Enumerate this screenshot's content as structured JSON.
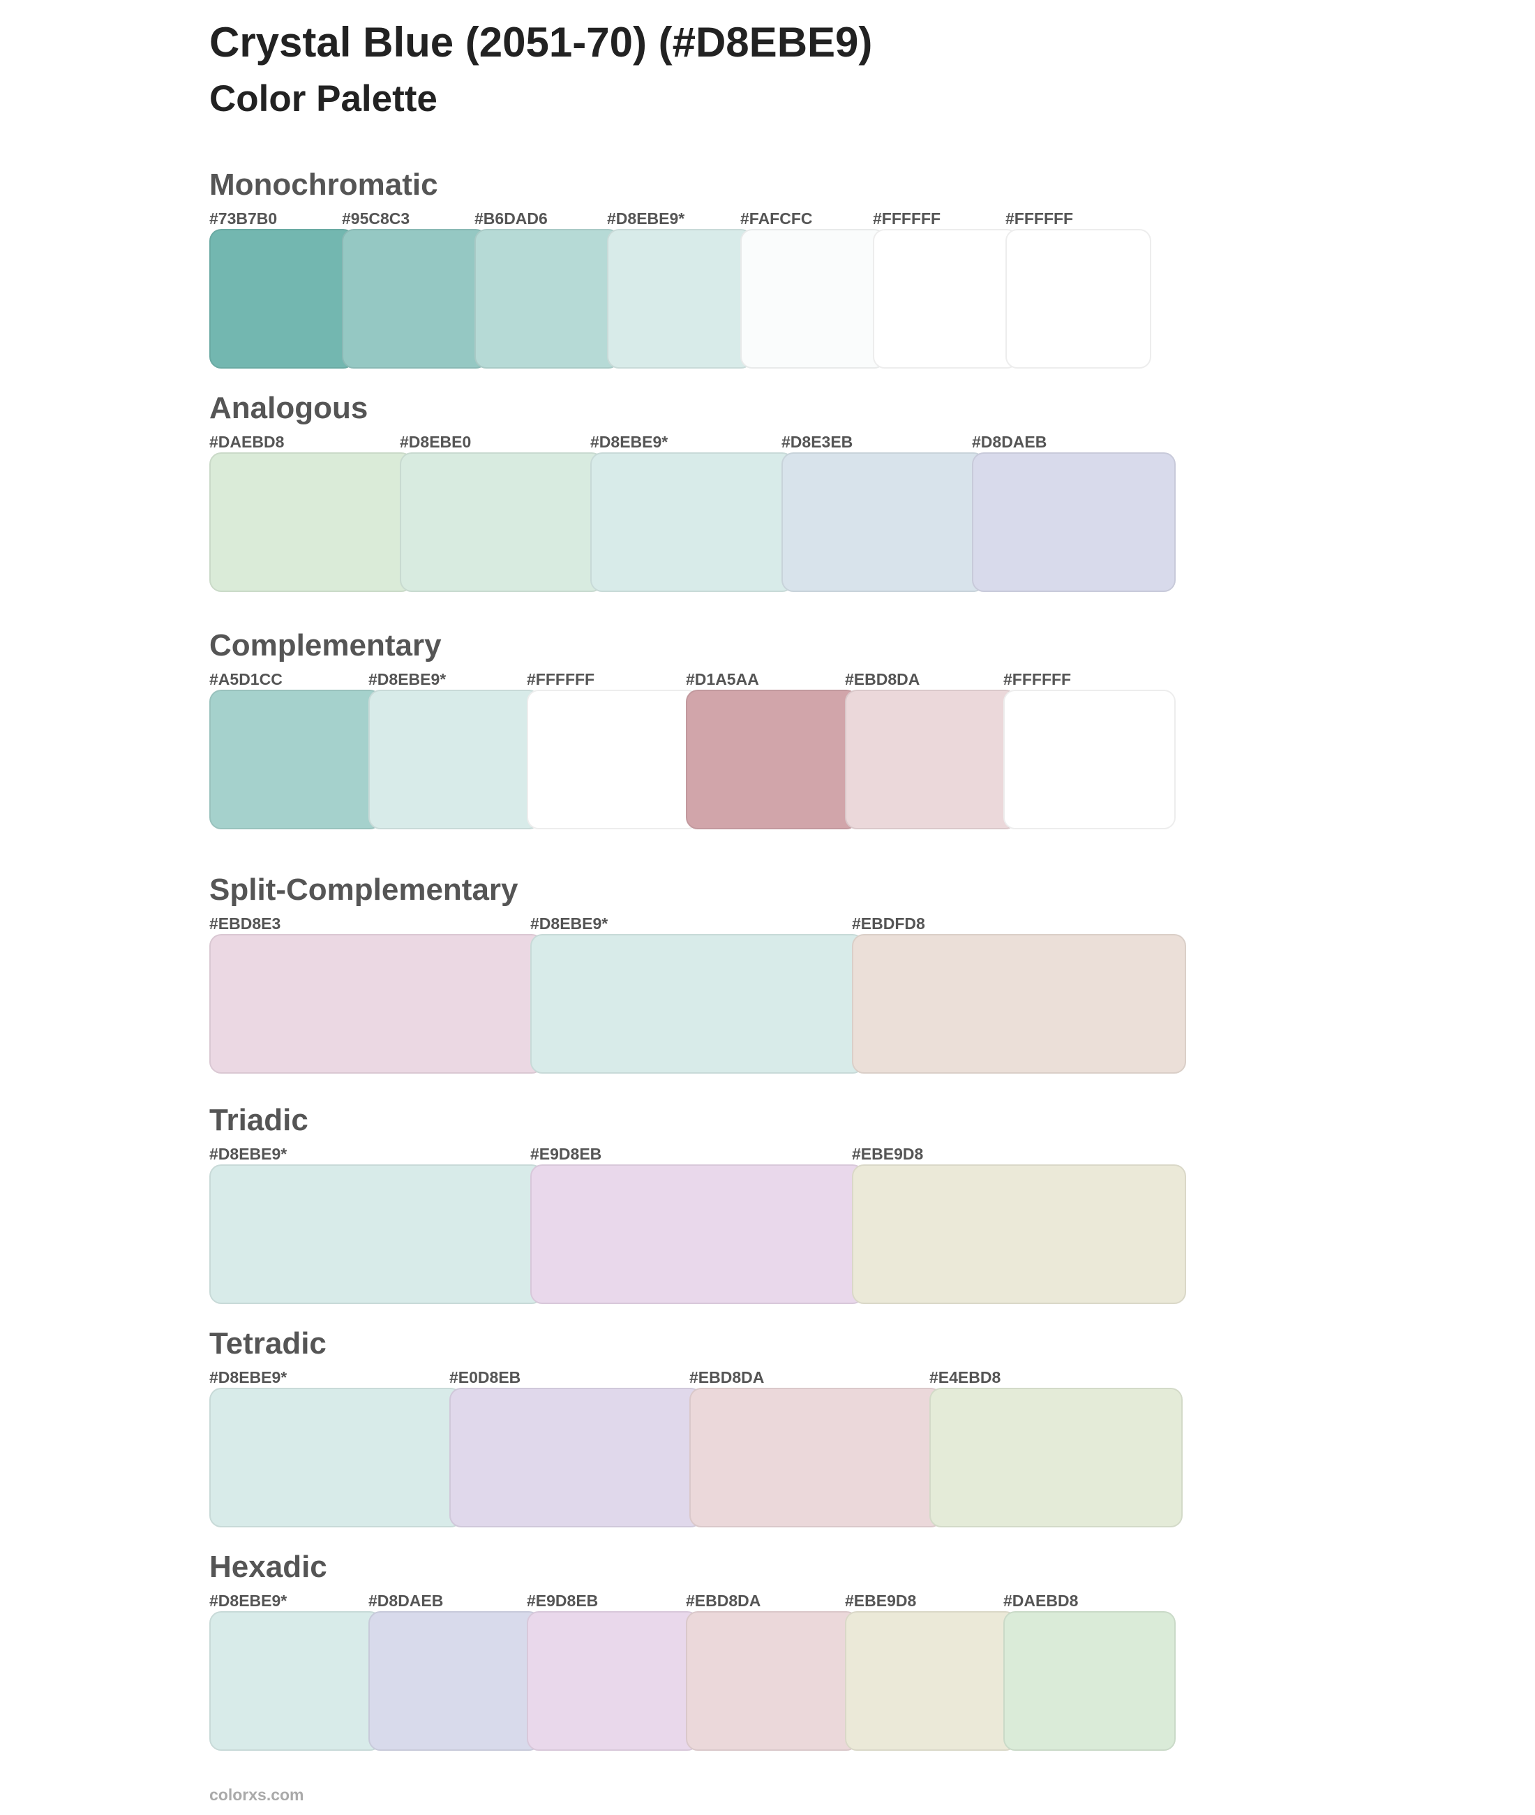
{
  "header": {
    "title": "Crystal Blue (2051-70) (#D8EBE9)",
    "subtitle": "Color Palette"
  },
  "base_color": "#D8EBE9",
  "sections": [
    {
      "id": "monochromatic",
      "heading": "Monochromatic",
      "swatches": [
        {
          "label": "#73B7B0",
          "color": "#73B7B0"
        },
        {
          "label": "#95C8C3",
          "color": "#95C8C3"
        },
        {
          "label": "#B6DAD6",
          "color": "#B6DAD6"
        },
        {
          "label": "#D8EBE9*",
          "color": "#D8EBE9"
        },
        {
          "label": "#FAFCFC",
          "color": "#FAFCFC"
        },
        {
          "label": "#FFFFFF",
          "color": "#FFFFFF"
        },
        {
          "label": "#FFFFFF",
          "color": "#FFFFFF"
        }
      ]
    },
    {
      "id": "analogous",
      "heading": "Analogous",
      "swatches": [
        {
          "label": "#DAEBD8",
          "color": "#DAEBD8"
        },
        {
          "label": "#D8EBE0",
          "color": "#D8EBE0"
        },
        {
          "label": "#D8EBE9*",
          "color": "#D8EBE9"
        },
        {
          "label": "#D8E3EB",
          "color": "#D8E3EB"
        },
        {
          "label": "#D8DAEB",
          "color": "#D8DAEB"
        }
      ]
    },
    {
      "id": "complementary",
      "heading": "Complementary",
      "swatches": [
        {
          "label": "#A5D1CC",
          "color": "#A5D1CC"
        },
        {
          "label": "#D8EBE9*",
          "color": "#D8EBE9"
        },
        {
          "label": "#FFFFFF",
          "color": "#FFFFFF"
        },
        {
          "label": "#D1A5AA",
          "color": "#D1A5AA"
        },
        {
          "label": "#EBD8DA",
          "color": "#EBD8DA"
        },
        {
          "label": "#FFFFFF",
          "color": "#FFFFFF"
        }
      ]
    },
    {
      "id": "split-complementary",
      "heading": "Split-Complementary",
      "swatches": [
        {
          "label": "#EBD8E3",
          "color": "#EBD8E3"
        },
        {
          "label": "#D8EBE9*",
          "color": "#D8EBE9"
        },
        {
          "label": "#EBDFD8",
          "color": "#EBDFD8"
        }
      ]
    },
    {
      "id": "triadic",
      "heading": "Triadic",
      "swatches": [
        {
          "label": "#D8EBE9*",
          "color": "#D8EBE9"
        },
        {
          "label": "#E9D8EB",
          "color": "#E9D8EB"
        },
        {
          "label": "#EBE9D8",
          "color": "#EBE9D8"
        }
      ]
    },
    {
      "id": "tetradic",
      "heading": "Tetradic",
      "swatches": [
        {
          "label": "#D8EBE9*",
          "color": "#D8EBE9"
        },
        {
          "label": "#E0D8EB",
          "color": "#E0D8EB"
        },
        {
          "label": "#EBD8DA",
          "color": "#EBD8DA"
        },
        {
          "label": "#E4EBD8",
          "color": "#E4EBD8"
        }
      ]
    },
    {
      "id": "hexadic",
      "heading": "Hexadic",
      "swatches": [
        {
          "label": "#D8EBE9*",
          "color": "#D8EBE9"
        },
        {
          "label": "#D8DAEB",
          "color": "#D8DAEB"
        },
        {
          "label": "#E9D8EB",
          "color": "#E9D8EB"
        },
        {
          "label": "#EBD8DA",
          "color": "#EBD8DA"
        },
        {
          "label": "#EBE9D8",
          "color": "#EBE9D8"
        },
        {
          "label": "#DAEBD8",
          "color": "#DAEBD8"
        }
      ]
    }
  ],
  "footer": {
    "site": "colorxs.com"
  }
}
